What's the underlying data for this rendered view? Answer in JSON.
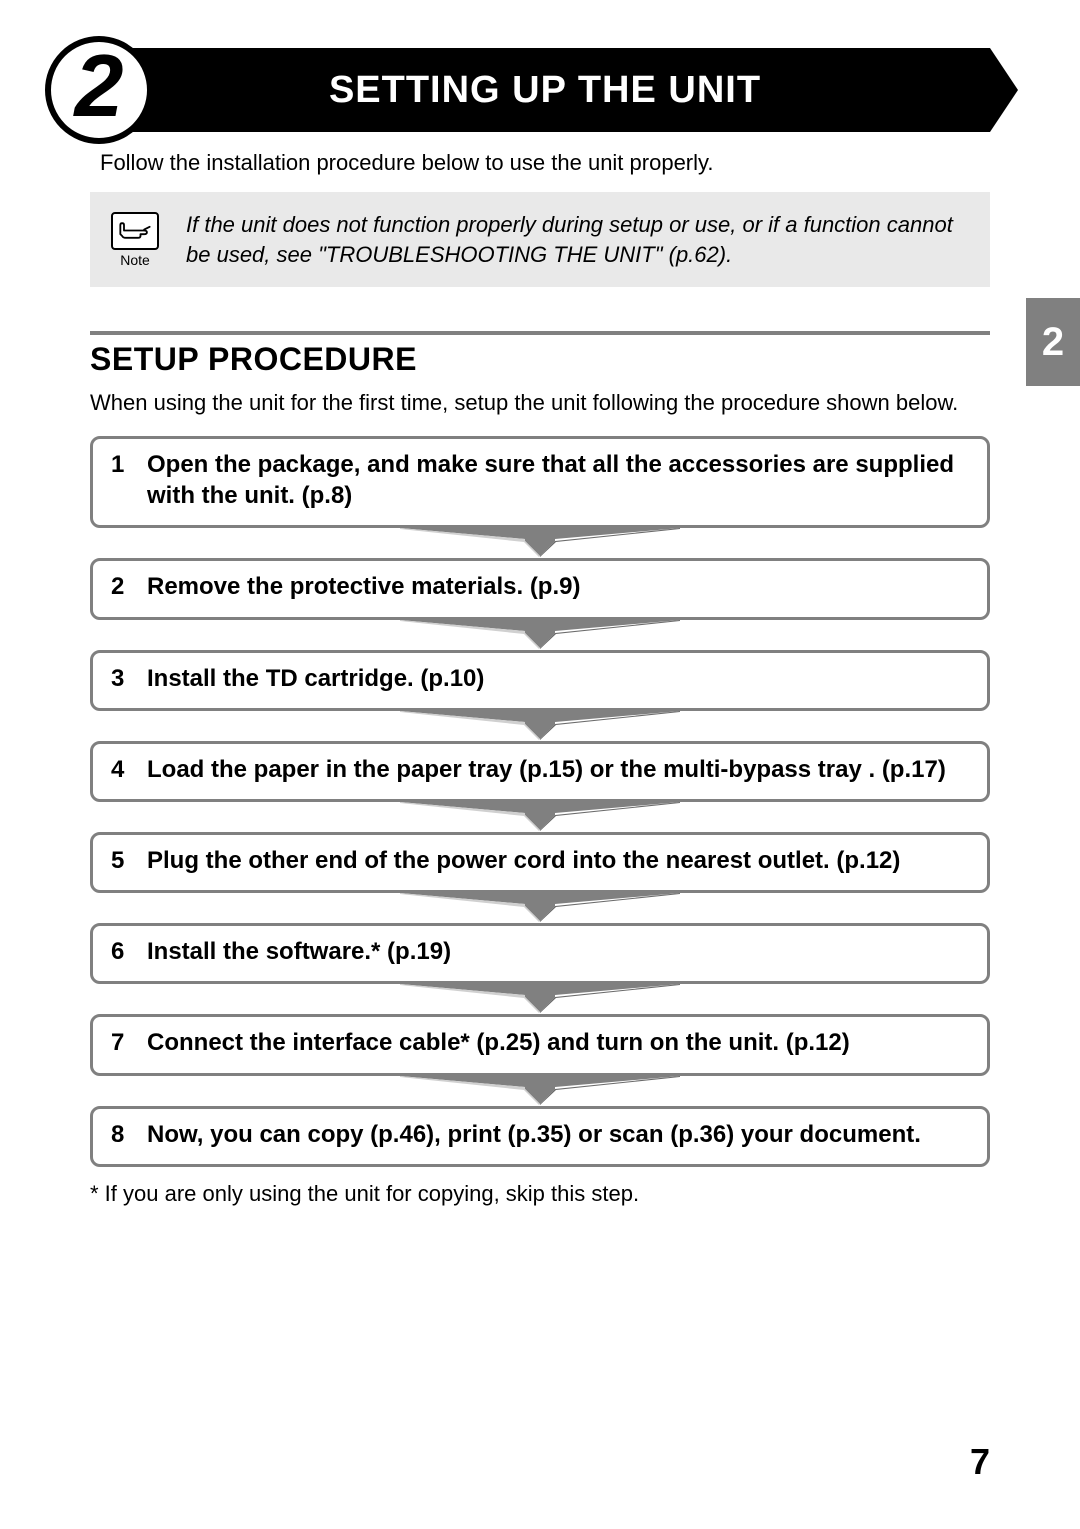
{
  "colors": {
    "black": "#000000",
    "white": "#ffffff",
    "note_bg": "#e9e9e9",
    "gray": "#808080",
    "arrow_shadow": "#6b6b6b",
    "arrow_highlight": "#d0d0d0"
  },
  "fontsizes": {
    "chapter_title": 38,
    "chapter_number": 88,
    "body": 22,
    "note_label": 14,
    "section_heading": 32,
    "step": 24,
    "side_tab": 40,
    "page_number": 36
  },
  "chapter": {
    "number": "2",
    "title": "SETTING UP THE UNIT"
  },
  "intro": "Follow the installation procedure below to use the unit properly.",
  "note": {
    "icon_label": "Note",
    "text": "If the unit does not function properly during setup or use, or if a function cannot be used, see \"TROUBLESHOOTING THE UNIT\" (p.62)."
  },
  "side_tab": "2",
  "section": {
    "heading": "SETUP PROCEDURE",
    "description": "When using the unit for the first time, setup the unit following the procedure shown below."
  },
  "steps": [
    {
      "num": "1",
      "text": "Open the package, and make sure that all the accessories are supplied with the unit. (p.8)"
    },
    {
      "num": "2",
      "text": "Remove the protective materials. (p.9)"
    },
    {
      "num": "3",
      "text": "Install the TD cartridge. (p.10)"
    },
    {
      "num": "4",
      "text": "Load the paper in the paper tray (p.15) or the multi-bypass tray . (p.17)"
    },
    {
      "num": "5",
      "text": "Plug the other end of the power cord into the nearest outlet.  (p.12)"
    },
    {
      "num": "6",
      "text": "Install the software.* (p.19)"
    },
    {
      "num": "7",
      "text": "Connect the interface cable* (p.25) and turn on the unit. (p.12)"
    },
    {
      "num": "8",
      "text": "Now, you can copy (p.46), print (p.35) or scan (p.36) your document."
    }
  ],
  "footnote": "* If you are only using the unit for copying, skip this step.",
  "page_number": "7"
}
